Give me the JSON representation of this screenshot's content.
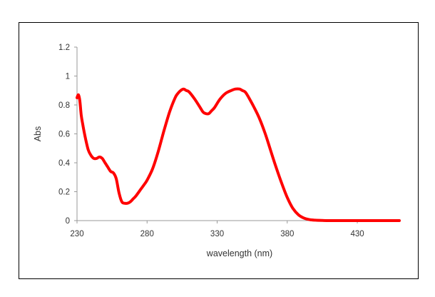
{
  "chart_data": {
    "type": "line",
    "title": "",
    "xlabel": "wavelength (nm)",
    "ylabel": "Abs",
    "xlim": [
      230,
      460
    ],
    "ylim": [
      0,
      1.2
    ],
    "x_ticks": [
      230,
      280,
      330,
      380,
      430
    ],
    "x_tick_labels": [
      "230",
      "280",
      "330",
      "380",
      "430"
    ],
    "y_ticks": [
      0,
      0.2,
      0.4,
      0.6,
      0.8,
      1,
      1.2
    ],
    "y_tick_labels": [
      "0",
      "0.2",
      "0.4",
      "0.6",
      "0.8",
      "1",
      "1.2"
    ],
    "grid": false,
    "legend": "none",
    "series": [
      {
        "color": "#ff0000",
        "x": [
          230,
          231,
          232,
          233,
          234,
          236,
          238,
          240,
          242,
          244,
          246,
          248,
          250,
          252,
          254,
          256,
          258,
          260,
          262,
          264,
          266,
          268,
          270,
          272,
          275,
          278,
          280,
          284,
          288,
          292,
          296,
          300,
          302,
          304,
          306,
          308,
          310,
          314,
          318,
          320,
          322,
          324,
          326,
          328,
          332,
          336,
          340,
          343,
          346,
          348,
          350,
          352,
          356,
          360,
          364,
          368,
          372,
          376,
          380,
          384,
          388,
          392,
          396,
          400,
          405,
          410,
          420,
          430,
          440,
          450,
          460
        ],
        "y": [
          0.85,
          0.87,
          0.83,
          0.73,
          0.67,
          0.57,
          0.49,
          0.45,
          0.43,
          0.43,
          0.44,
          0.43,
          0.4,
          0.37,
          0.34,
          0.33,
          0.29,
          0.19,
          0.13,
          0.12,
          0.12,
          0.13,
          0.15,
          0.17,
          0.21,
          0.25,
          0.28,
          0.36,
          0.48,
          0.62,
          0.75,
          0.85,
          0.88,
          0.9,
          0.91,
          0.9,
          0.89,
          0.84,
          0.78,
          0.75,
          0.74,
          0.74,
          0.76,
          0.78,
          0.84,
          0.88,
          0.9,
          0.91,
          0.91,
          0.9,
          0.89,
          0.86,
          0.79,
          0.71,
          0.61,
          0.49,
          0.37,
          0.26,
          0.16,
          0.085,
          0.04,
          0.017,
          0.007,
          0.003,
          0.001,
          0.0,
          0.0,
          0.0,
          0.0,
          0.0,
          0.0
        ]
      }
    ]
  }
}
